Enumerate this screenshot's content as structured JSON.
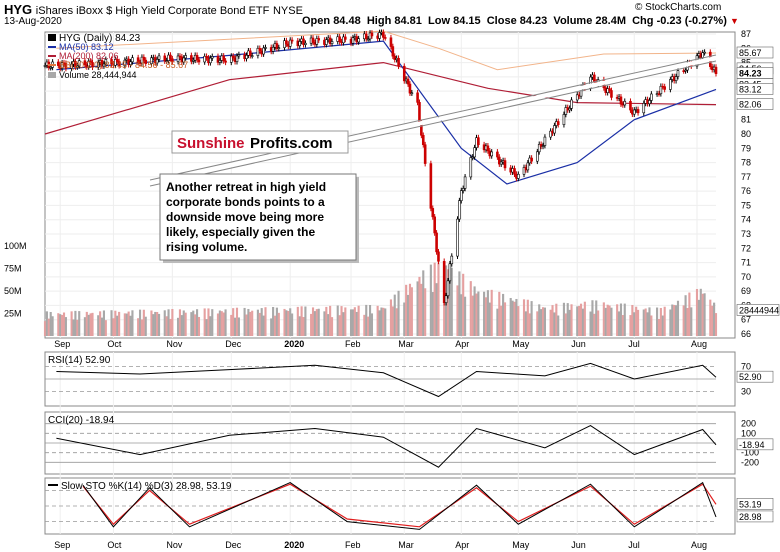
{
  "header": {
    "symbol": "HYG",
    "name": "iShares iBoxx $ High Yield Corporate Bond ETF",
    "exchange": "NYSE",
    "date": "13-Aug-2020",
    "open_label": "Open",
    "open": "84.48",
    "high_label": "High",
    "high": "84.81",
    "low_label": "Low",
    "low": "84.15",
    "close_label": "Close",
    "close": "84.23",
    "volume_label": "Volume",
    "volume": "28.4M",
    "chg_label": "Chg",
    "chg": "-0.23 (-0.27%)",
    "credit": "© StockCharts.com"
  },
  "legend": {
    "price": "HYG (Daily) 84.23",
    "ma50": "MA(50) 83.12",
    "ma200": "MA(200) 82.06",
    "bb": "BB(20,2.0) 83.45 - 84.56 - 85.67",
    "volume": "Volume 28,444,944"
  },
  "watermark": {
    "part1": "Sunshine",
    "part2": "Profits.com"
  },
  "annotation": [
    "Another retreat in high yield",
    "corporate bonds points to a",
    "downside move being more",
    "likely, especially given the",
    "rising volume."
  ],
  "colors": {
    "price_up": "#000000",
    "price_down": "#cc0000",
    "ma50": "#1a2fa6",
    "ma200": "#b01e36",
    "bb": "#f2b48a",
    "volume_up": "#a8a8a8",
    "volume_down": "#e5a0a0",
    "rsi": "#000000",
    "fill_positive": "#2e6b2e",
    "fill_negative": "#8b2b2b",
    "stoch_k": "#000000",
    "stoch_d": "#e01e1e",
    "current_label_bg": "#1a2fa6"
  },
  "chart_data": [
    {
      "type": "candlestick",
      "panel": "price",
      "title": "HYG (Daily) 84.23",
      "y_ticks": [
        "66",
        "67",
        "68",
        "69",
        "70",
        "71",
        "72",
        "73",
        "74",
        "75",
        "76",
        "77",
        "78",
        "79",
        "80",
        "81",
        "82",
        "83",
        "84",
        "85",
        "86",
        "87"
      ],
      "ylim": [
        66,
        87
      ],
      "x_ticks": [
        "Sep",
        "Oct",
        "Nov",
        "Dec",
        "2020",
        "Feb",
        "Mar",
        "Apr",
        "May",
        "Jun",
        "Jul",
        "Aug"
      ],
      "x_start": "2019-08-26",
      "x_end": "2020-08-13",
      "side_labels": {
        "bb_upper": "85.67",
        "bb_mid": "84.56",
        "bb_lower": "83.45",
        "last": "84.23",
        "ma50": "83.12",
        "ma200": "82.06"
      },
      "series": [
        {
          "name": "HYG (Daily) 84.23",
          "x": [
            "2019-09-01",
            "2019-10-01",
            "2019-11-01",
            "2019-12-01",
            "2020-01-02",
            "2020-02-03",
            "2020-02-20",
            "2020-03-09",
            "2020-03-23",
            "2020-04-01",
            "2020-04-09",
            "2020-05-01",
            "2020-06-08",
            "2020-07-01",
            "2020-08-06",
            "2020-08-13"
          ],
          "values": [
            84.8,
            85.0,
            85.3,
            85.2,
            86.4,
            86.6,
            87.0,
            82.0,
            68.0,
            76.0,
            79.5,
            77.0,
            84.0,
            81.5,
            85.7,
            84.23
          ]
        },
        {
          "name": "MA(50) 83.12",
          "x": [
            "2019-09-01",
            "2019-12-01",
            "2020-02-20",
            "2020-04-01",
            "2020-04-25",
            "2020-06-01",
            "2020-07-01",
            "2020-08-13"
          ],
          "values": [
            84.5,
            85.5,
            86.5,
            79.0,
            76.5,
            78.0,
            81.0,
            83.12
          ]
        },
        {
          "name": "MA(200) 82.06",
          "x": [
            "2019-08-26",
            "2019-12-01",
            "2020-02-20",
            "2020-04-15",
            "2020-06-01",
            "2020-08-13"
          ],
          "values": [
            80.0,
            83.8,
            85.0,
            83.2,
            82.2,
            82.06
          ]
        },
        {
          "name": "BB(20,2.0) 83.45 - 84.56 - 85.67",
          "x": [
            "2019-09-01",
            "2020-02-20",
            "2020-03-20",
            "2020-04-20",
            "2020-06-15",
            "2020-08-13"
          ],
          "values": [
            86.0,
            87.2,
            86.0,
            84.5,
            85.6,
            85.67
          ]
        }
      ]
    },
    {
      "type": "bar",
      "panel": "volume",
      "title": "Volume 28,444,944",
      "y_ticks": [
        "25M",
        "50M",
        "75M",
        "100M"
      ],
      "ylim": [
        0,
        100
      ],
      "unit": "M",
      "last_label": "28444944",
      "series": [
        {
          "name": "Volume 28,444,944",
          "x": [
            "2019-09-01",
            "2019-12-01",
            "2020-02-20",
            "2020-03-12",
            "2020-03-23",
            "2020-04-09",
            "2020-05-15",
            "2020-06-10",
            "2020-07-15",
            "2020-08-06",
            "2020-08-13"
          ],
          "values": [
            22,
            25,
            28,
            60,
            70,
            45,
            28,
            32,
            25,
            45,
            28.4
          ]
        }
      ]
    },
    {
      "type": "line",
      "panel": "rsi",
      "title": "RSI(14) 52.90",
      "y_ticks": [
        "70",
        "50",
        "30"
      ],
      "ylim": [
        10,
        90
      ],
      "last_label": "52.90",
      "series": [
        {
          "name": "RSI(14) 52.90",
          "x": [
            "2019-09-01",
            "2019-10-15",
            "2019-12-01",
            "2020-01-15",
            "2020-02-20",
            "2020-03-20",
            "2020-04-09",
            "2020-05-15",
            "2020-06-08",
            "2020-07-01",
            "2020-08-06",
            "2020-08-13"
          ],
          "values": [
            62,
            58,
            65,
            72,
            60,
            22,
            62,
            55,
            75,
            50,
            72,
            52.9
          ]
        }
      ]
    },
    {
      "type": "line",
      "panel": "cci",
      "title": "CCI(20) -18.94",
      "y_ticks": [
        "200",
        "100",
        "0",
        "-100",
        "-200"
      ],
      "ylim": [
        -300,
        300
      ],
      "last_label": "-18.94",
      "series": [
        {
          "name": "CCI(20) -18.94",
          "x": [
            "2019-09-01",
            "2019-10-15",
            "2019-12-01",
            "2020-01-15",
            "2020-02-20",
            "2020-03-20",
            "2020-04-09",
            "2020-05-15",
            "2020-06-08",
            "2020-07-01",
            "2020-08-06",
            "2020-08-13"
          ],
          "values": [
            50,
            -120,
            80,
            150,
            60,
            -250,
            150,
            -50,
            180,
            -120,
            140,
            -18.94
          ]
        }
      ]
    },
    {
      "type": "line",
      "panel": "stochastic",
      "title": "Slow STO %K(14) %D(3) 28.98, 53.19",
      "y_ticks": [
        "80",
        "50",
        "20"
      ],
      "ylim": [
        0,
        100
      ],
      "x_ticks": [
        "Sep",
        "Oct",
        "Nov",
        "Dec",
        "2020",
        "Feb",
        "Mar",
        "Apr",
        "May",
        "Jun",
        "Jul",
        "Aug"
      ],
      "last_labels": {
        "d": "53.19",
        "k": "28.98"
      },
      "series": [
        {
          "name": "%K(14)",
          "x": [
            "2019-09-15",
            "2019-10-01",
            "2019-10-20",
            "2019-11-10",
            "2020-01-02",
            "2020-02-01",
            "2020-03-10",
            "2020-04-09",
            "2020-05-01",
            "2020-06-08",
            "2020-07-01",
            "2020-08-06",
            "2020-08-13"
          ],
          "values": [
            90,
            10,
            85,
            10,
            95,
            20,
            5,
            90,
            15,
            92,
            10,
            95,
            28.98
          ]
        },
        {
          "name": "%D(3)",
          "x": [
            "2019-09-15",
            "2019-10-01",
            "2019-10-20",
            "2019-11-10",
            "2020-01-02",
            "2020-02-01",
            "2020-03-10",
            "2020-04-09",
            "2020-05-01",
            "2020-06-08",
            "2020-07-01",
            "2020-08-06",
            "2020-08-13"
          ],
          "values": [
            88,
            15,
            80,
            15,
            92,
            25,
            10,
            85,
            20,
            88,
            15,
            92,
            53.19
          ]
        }
      ]
    }
  ]
}
